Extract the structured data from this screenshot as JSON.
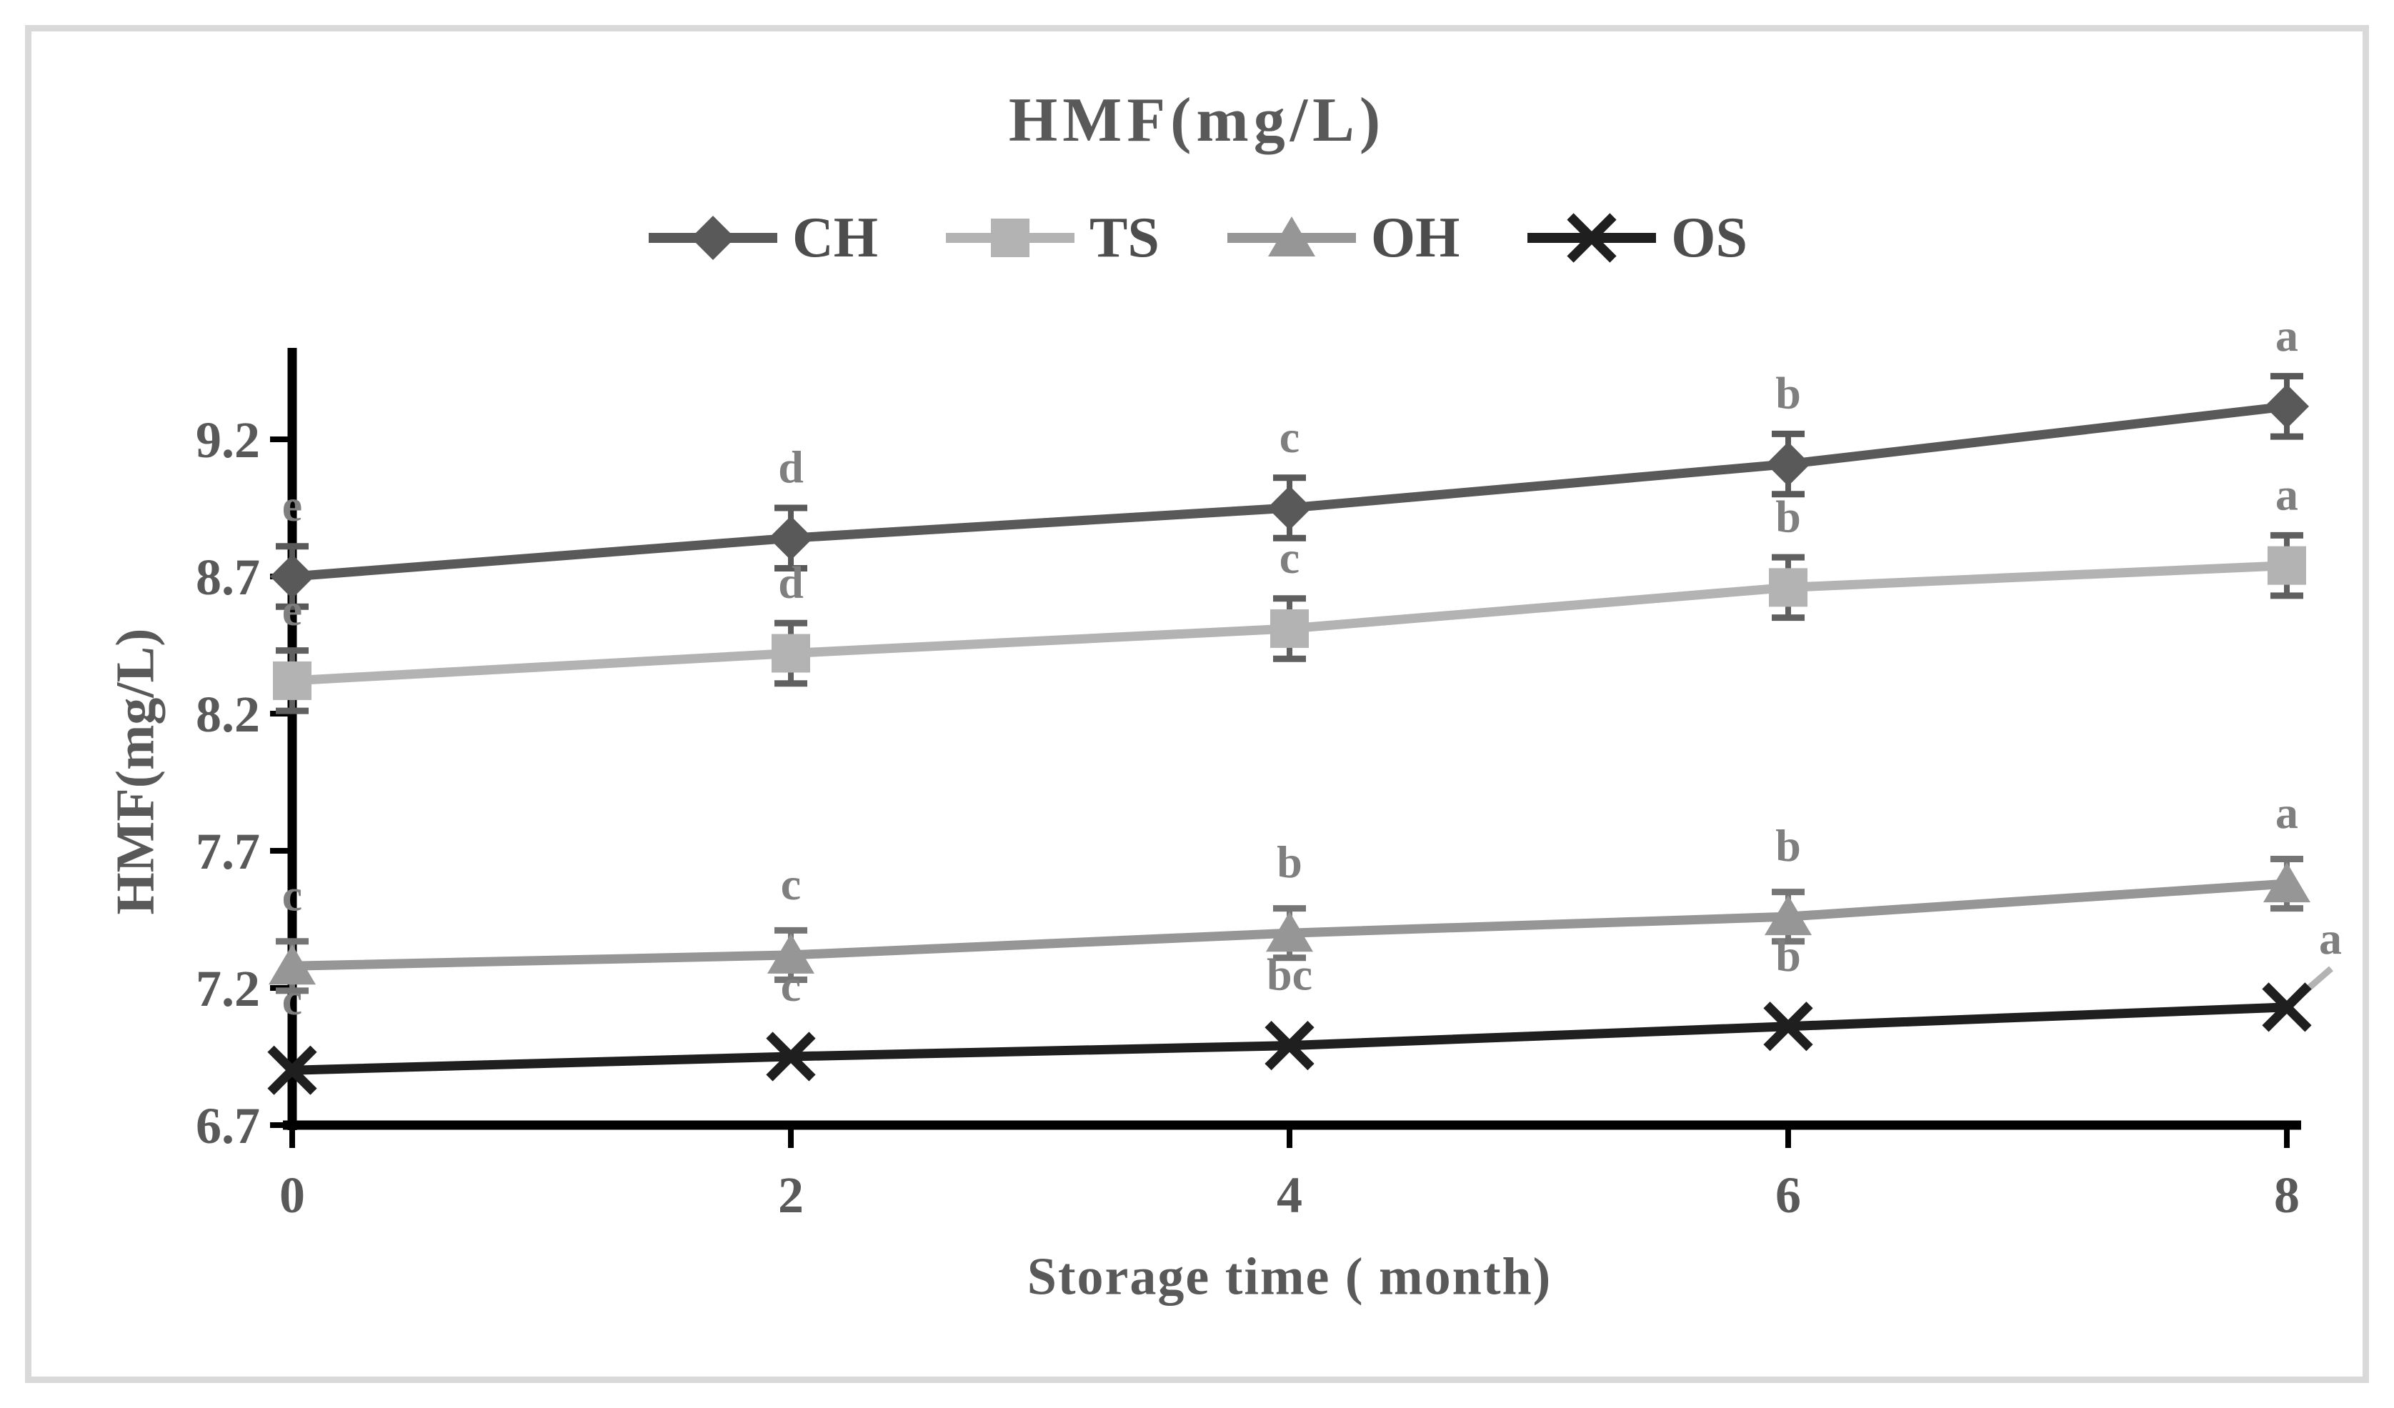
{
  "chart_data": {
    "type": "line",
    "title": "HMF(mg/L)",
    "xlabel": "Storage time ( month)",
    "ylabel": "HMF(mg/L)",
    "x": [
      0,
      2,
      4,
      6,
      8
    ],
    "x_tick_labels": [
      "0",
      "2",
      "4",
      "6",
      "8"
    ],
    "y_ticks": [
      6.7,
      7.2,
      7.7,
      8.2,
      8.7,
      9.2
    ],
    "y_tick_labels": [
      "6.7",
      "7.2",
      "7.7",
      "8.2",
      "8.7",
      "9.2"
    ],
    "ylim": [
      6.7,
      9.53
    ],
    "grid": false,
    "legend_position": "top-center",
    "series": [
      {
        "name": "CH",
        "marker": "diamond",
        "color": "#595959",
        "error_color": "#595959",
        "values": [
          8.7,
          8.84,
          8.95,
          9.11,
          9.32
        ],
        "letters": [
          "e",
          "d",
          "c",
          "b",
          "a"
        ],
        "error": 0.11
      },
      {
        "name": "TS",
        "marker": "square",
        "color": "#b3b3b3",
        "error_color": "#606060",
        "values": [
          8.32,
          8.42,
          8.51,
          8.66,
          8.74
        ],
        "letters": [
          "e",
          "d",
          "c",
          "b",
          "a"
        ],
        "error": 0.11
      },
      {
        "name": "OH",
        "marker": "triangle",
        "color": "#969696",
        "error_color": "#757575",
        "values": [
          7.28,
          7.32,
          7.4,
          7.46,
          7.58
        ],
        "letters": [
          "c",
          "c",
          "b",
          "b",
          "a"
        ],
        "error": 0.09
      },
      {
        "name": "OS",
        "marker": "x",
        "color": "#1f1f1f",
        "error_color": "#1f1f1f",
        "values": [
          6.9,
          6.95,
          6.99,
          7.06,
          7.13
        ],
        "letters": [
          "c",
          "c",
          "bc",
          "b",
          "a"
        ],
        "error": 0,
        "last_letter_offset": [
          61,
          -75
        ],
        "last_letter_leader": true
      }
    ],
    "annotation_color": "#7f7f7f",
    "axis_color": "#000000",
    "tick_label_color": "#595959",
    "leader_color": "#b3b3b3",
    "frame_color": "#d9d9d9"
  }
}
